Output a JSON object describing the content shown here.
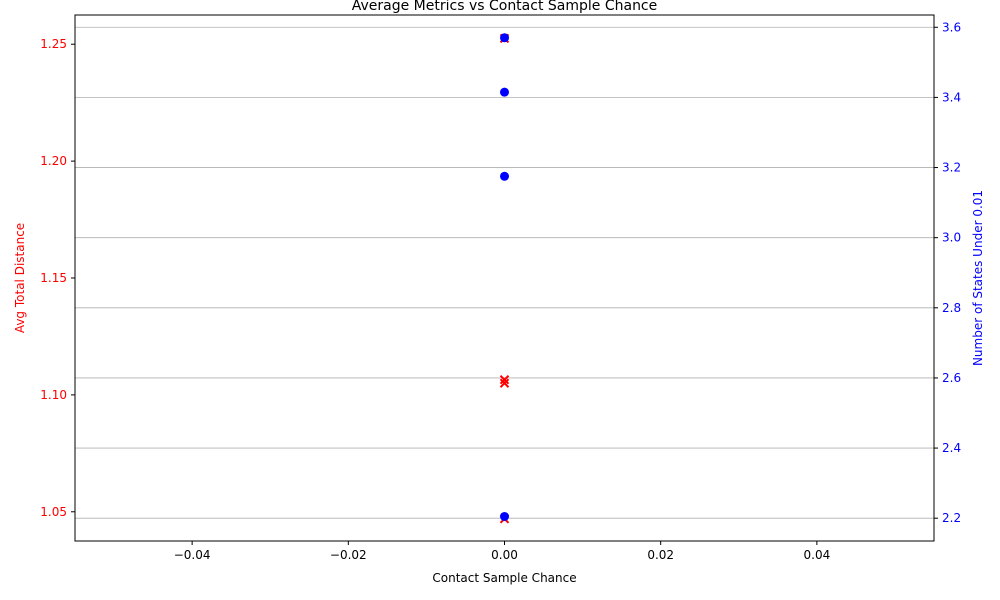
{
  "chart_data": {
    "type": "scatter",
    "title": "Average Metrics vs Contact Sample Chance",
    "xlabel": "Contact Sample Chance",
    "ylabel_left": "Avg Total Distance",
    "ylabel_right": "Number of States Under 0.01",
    "xlim": [
      -0.055,
      0.055
    ],
    "ylim_left": [
      1.0375,
      1.2625
    ],
    "ylim_right": [
      2.135,
      3.635
    ],
    "x_ticks": [
      -0.04,
      -0.02,
      0.0,
      0.02,
      0.04
    ],
    "x_tick_labels": [
      "−0.04",
      "−0.02",
      "0.00",
      "0.02",
      "0.04"
    ],
    "y_left_ticks": [
      1.05,
      1.1,
      1.15,
      1.2,
      1.25
    ],
    "y_left_tick_labels": [
      "1.05",
      "1.10",
      "1.15",
      "1.20",
      "1.25"
    ],
    "y_right_ticks": [
      2.2,
      2.4,
      2.6,
      2.8,
      3.0,
      3.2,
      3.4,
      3.6
    ],
    "y_right_tick_labels": [
      "2.2",
      "2.4",
      "2.6",
      "2.8",
      "3.0",
      "3.2",
      "3.4",
      "3.6"
    ],
    "grid": "y-right",
    "series": [
      {
        "axis": "left",
        "marker": "x",
        "color": "#ff0000",
        "points": [
          [
            0.0,
            1.105
          ],
          [
            0.0,
            1.1065
          ],
          [
            0.0,
            1.047
          ],
          [
            0.0,
            1.2525
          ]
        ]
      },
      {
        "axis": "right",
        "marker": "circle",
        "color": "#0000ff",
        "points": [
          [
            0.0,
            3.57
          ],
          [
            0.0,
            3.415
          ],
          [
            0.0,
            3.175
          ],
          [
            0.0,
            2.205
          ]
        ]
      }
    ]
  }
}
